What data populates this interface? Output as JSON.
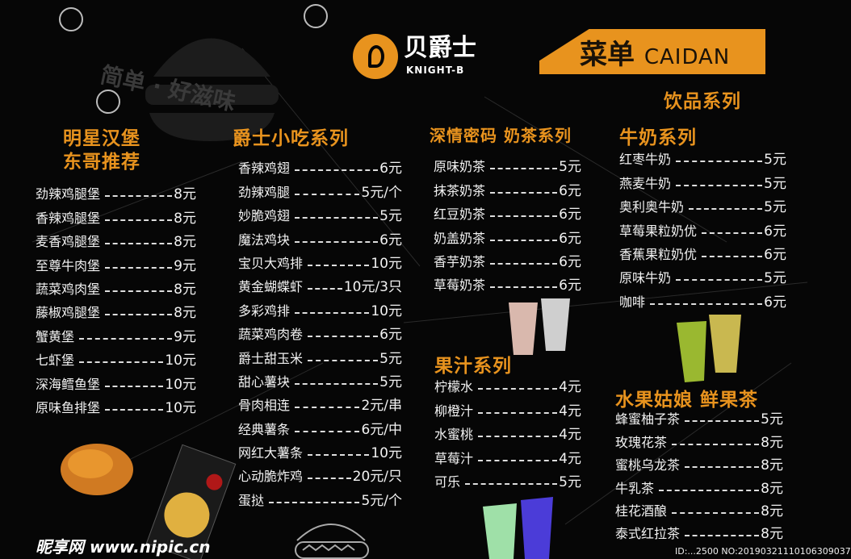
{
  "brand": {
    "name": "贝爵士",
    "sub": "KNIGHT-B",
    "slogan": "简单 · 好滋味",
    "accent": "#e8931e"
  },
  "banner": {
    "title": "菜单",
    "latin": "CAIDAN"
  },
  "drinks_title": "饮品系列",
  "burgers": {
    "title1": "明星汉堡",
    "title2": "东哥推荐",
    "items": [
      {
        "name": "劲辣鸡腿堡",
        "price": "8元"
      },
      {
        "name": "香辣鸡腿堡",
        "price": "8元"
      },
      {
        "name": "麦香鸡腿堡",
        "price": "8元"
      },
      {
        "name": "至尊牛肉堡",
        "price": "9元"
      },
      {
        "name": "蔬菜鸡肉堡",
        "price": "8元"
      },
      {
        "name": "藤椒鸡腿堡",
        "price": "8元"
      },
      {
        "name": "蟹黄堡",
        "price": "9元"
      },
      {
        "name": "七虾堡",
        "price": "10元"
      },
      {
        "name": "深海鳕鱼堡",
        "price": "10元"
      },
      {
        "name": "原味鱼排堡",
        "price": "10元"
      }
    ]
  },
  "snacks": {
    "title": "爵士小吃系列",
    "items": [
      {
        "name": "香辣鸡翅",
        "price": "6元"
      },
      {
        "name": "劲辣鸡腿",
        "price": "5元/个"
      },
      {
        "name": "妙脆鸡翅",
        "price": "5元"
      },
      {
        "name": "魔法鸡块",
        "price": "6元"
      },
      {
        "name": "宝贝大鸡排",
        "price": "10元"
      },
      {
        "name": "黄金蝴蝶虾",
        "price": "10元/3只"
      },
      {
        "name": "多彩鸡排",
        "price": "10元"
      },
      {
        "name": "蔬菜鸡肉卷",
        "price": "6元"
      },
      {
        "name": "爵士甜玉米",
        "price": "5元"
      },
      {
        "name": "甜心薯块",
        "price": "5元"
      },
      {
        "name": "骨肉相连",
        "price": "2元/串"
      },
      {
        "name": "经典薯条",
        "price": "6元/中"
      },
      {
        "name": "网红大薯条",
        "price": "10元"
      },
      {
        "name": "心动脆炸鸡",
        "price": "20元/只"
      },
      {
        "name": "蛋挞",
        "price": "5元/个"
      }
    ]
  },
  "milktea": {
    "title": "深情密码  奶茶系列",
    "items": [
      {
        "name": "原味奶茶",
        "price": "5元"
      },
      {
        "name": "抹茶奶茶",
        "price": "6元"
      },
      {
        "name": "红豆奶茶",
        "price": "6元"
      },
      {
        "name": "奶盖奶茶",
        "price": "6元"
      },
      {
        "name": "香芋奶茶",
        "price": "6元"
      },
      {
        "name": "草莓奶茶",
        "price": "6元"
      }
    ]
  },
  "milk": {
    "title": "牛奶系列",
    "items": [
      {
        "name": "红枣牛奶",
        "price": "5元"
      },
      {
        "name": "燕麦牛奶",
        "price": "5元"
      },
      {
        "name": "奥利奥牛奶",
        "price": "5元"
      },
      {
        "name": "草莓果粒奶优",
        "price": "6元"
      },
      {
        "name": "香蕉果粒奶优",
        "price": "6元"
      },
      {
        "name": "原味牛奶",
        "price": "5元"
      },
      {
        "name": "咖啡",
        "price": "6元"
      }
    ]
  },
  "juice": {
    "title": "果汁系列",
    "items": [
      {
        "name": "柠檬水",
        "price": "4元"
      },
      {
        "name": "柳橙汁",
        "price": "4元"
      },
      {
        "name": "水蜜桃",
        "price": "4元"
      },
      {
        "name": "草莓汁",
        "price": "4元"
      },
      {
        "name": "可乐",
        "price": "5元"
      }
    ]
  },
  "fruittea": {
    "title": "水果姑娘  鲜果茶",
    "items": [
      {
        "name": "蜂蜜柚子茶",
        "price": "5元"
      },
      {
        "name": "玫瑰花茶",
        "price": "8元"
      },
      {
        "name": "蜜桃乌龙茶",
        "price": "8元"
      },
      {
        "name": "牛乳茶",
        "price": "8元"
      },
      {
        "name": "桂花酒酿",
        "price": "8元"
      },
      {
        "name": "泰式红拉茶",
        "price": "8元"
      }
    ]
  },
  "watermark": {
    "site": "昵享网 www.nipic.cn",
    "id": "ID:...2500 NO:20190321110106309037"
  }
}
